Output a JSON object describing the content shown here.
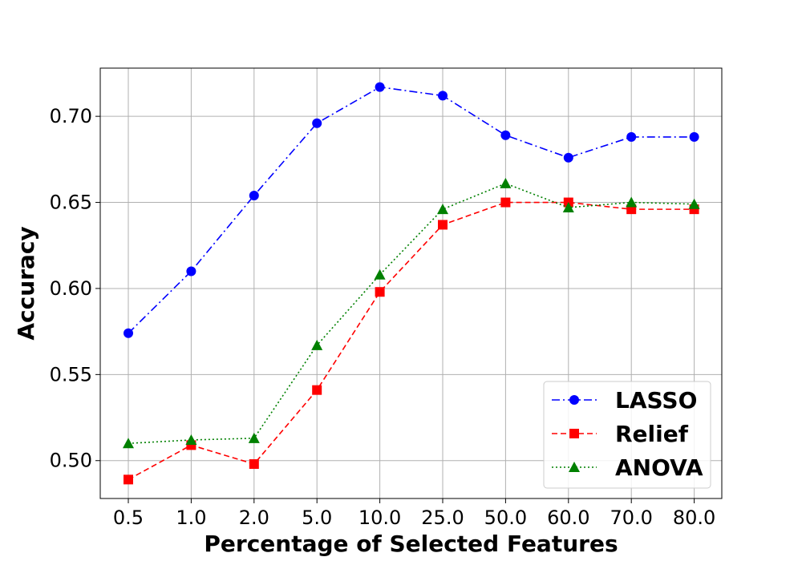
{
  "chart_data": {
    "type": "line",
    "title": "",
    "xlabel": "Percentage of Selected Features",
    "ylabel": "Accuracy",
    "categories": [
      "0.5",
      "1.0",
      "2.0",
      "5.0",
      "10.0",
      "25.0",
      "50.0",
      "60.0",
      "70.0",
      "80.0"
    ],
    "ylim": [
      0.478,
      0.728
    ],
    "yticks": [
      "0.50",
      "0.55",
      "0.60",
      "0.65",
      "0.70"
    ],
    "grid": true,
    "legend_position": "lower-right",
    "series": [
      {
        "name": "LASSO",
        "color": "#0000ff",
        "marker": "circle",
        "linestyle": "dash-dot",
        "values": [
          0.574,
          0.61,
          0.654,
          0.696,
          0.717,
          0.712,
          0.689,
          0.676,
          0.688,
          0.688
        ]
      },
      {
        "name": "Relief",
        "color": "#ff0000",
        "marker": "square",
        "linestyle": "dashed",
        "values": [
          0.489,
          0.509,
          0.498,
          0.541,
          0.598,
          0.637,
          0.65,
          0.65,
          0.646,
          0.646
        ]
      },
      {
        "name": "ANOVA",
        "color": "#008000",
        "marker": "triangle",
        "linestyle": "dotted",
        "values": [
          0.51,
          0.512,
          0.513,
          0.567,
          0.608,
          0.646,
          0.661,
          0.647,
          0.65,
          0.649
        ]
      }
    ]
  }
}
